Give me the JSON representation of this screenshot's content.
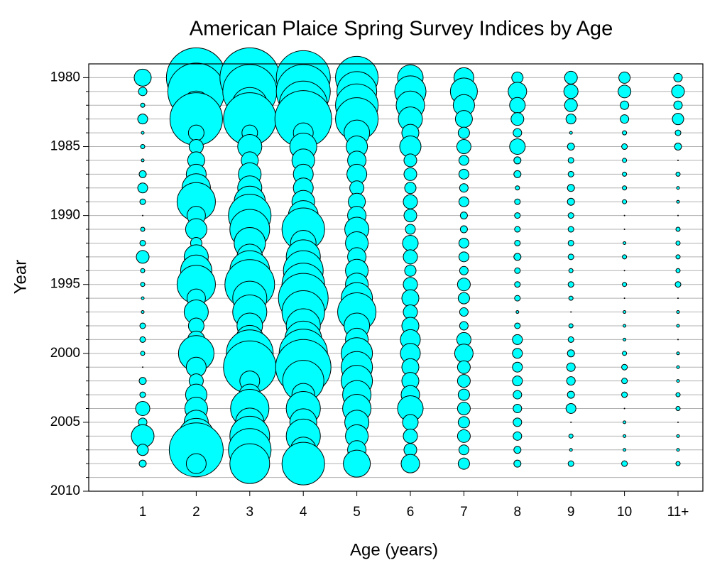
{
  "chart_data": {
    "type": "bubble",
    "title": "American Plaice Spring Survey Indices by Age",
    "x_label": "Age (years)",
    "y_label": "Year",
    "categories": [
      "1",
      "2",
      "3",
      "4",
      "5",
      "6",
      "7",
      "8",
      "9",
      "10",
      "11+"
    ],
    "y": [
      1980,
      1981,
      1982,
      1983,
      1984,
      1985,
      1986,
      1987,
      1988,
      1989,
      1990,
      1991,
      1992,
      1993,
      1994,
      1995,
      1996,
      1997,
      1998,
      1999,
      2000,
      2001,
      2002,
      2003,
      2004,
      2005,
      2006,
      2007,
      2008
    ],
    "sizes": [
      [
        12,
        6,
        3,
        7,
        2,
        3,
        2,
        5,
        7,
        4,
        0.5,
        3,
        4,
        9,
        3,
        3,
        2,
        2,
        4,
        4,
        3,
        0.5,
        5,
        4,
        10,
        6,
        16,
        8,
        5
      ],
      [
        42,
        40,
        20,
        37,
        11,
        10,
        12,
        14,
        20,
        27,
        13,
        15,
        8,
        17,
        22,
        27,
        13,
        17,
        11,
        12,
        25,
        14,
        10,
        15,
        16,
        17,
        25,
        38,
        14
      ],
      [
        42,
        38,
        25,
        37,
        11,
        17,
        12,
        16,
        17,
        22,
        30,
        28,
        22,
        18,
        28,
        35,
        24,
        24,
        18,
        20,
        33,
        37,
        14,
        15,
        27,
        20,
        28,
        30,
        28
      ],
      [
        38,
        38,
        34,
        40,
        14,
        19,
        16,
        14,
        14,
        16,
        21,
        30,
        18,
        24,
        28,
        30,
        35,
        30,
        24,
        26,
        34,
        39,
        29,
        16,
        24,
        19,
        24,
        18,
        30
      ],
      [
        30,
        28,
        30,
        30,
        18,
        15,
        13,
        14,
        10,
        12,
        13,
        17,
        16,
        13,
        16,
        16,
        22,
        27,
        18,
        16,
        22,
        22,
        22,
        20,
        20,
        17,
        16,
        13,
        19
      ],
      [
        18,
        22,
        20,
        17,
        12,
        15,
        9,
        9,
        8,
        10,
        9,
        7,
        11,
        10,
        8,
        10,
        12,
        10,
        12,
        14,
        14,
        12,
        12,
        13,
        18,
        11,
        10,
        9,
        13
      ],
      [
        14,
        19,
        15,
        12,
        8,
        10,
        7,
        7,
        6,
        7,
        5,
        5,
        7,
        7,
        6,
        9,
        8,
        6,
        6,
        10,
        13,
        9,
        9,
        8,
        9,
        8,
        9,
        7,
        8
      ],
      [
        8,
        13,
        11,
        9,
        6,
        11,
        5,
        5,
        3,
        4,
        4,
        4,
        4,
        5,
        4,
        4,
        4,
        2,
        4,
        7,
        7,
        7,
        7,
        6,
        6,
        6,
        6,
        5,
        5
      ],
      [
        9,
        10,
        9,
        7,
        2,
        5,
        4,
        4,
        5,
        5,
        4,
        4,
        4,
        4,
        3,
        4,
        3,
        0.5,
        3,
        4,
        5,
        6,
        6,
        5,
        7,
        0.5,
        3,
        2,
        4
      ],
      [
        8,
        9,
        6,
        6,
        3,
        4,
        3,
        3,
        3,
        3,
        0.5,
        0.5,
        2,
        3,
        0.5,
        3,
        0.5,
        2,
        2,
        2,
        3,
        4,
        4,
        4,
        0.5,
        2,
        2,
        2,
        4
      ],
      [
        6,
        9,
        6,
        8,
        4,
        5,
        0.5,
        3,
        2,
        2,
        0.5,
        3,
        3,
        3,
        3,
        4,
        0.5,
        2,
        2,
        0.5,
        2,
        2,
        2,
        3,
        3,
        0.5,
        2,
        2,
        3
      ]
    ],
    "color": "#00ffff",
    "edge_color": "#000000",
    "ylim": [
      2010,
      1979
    ],
    "yticks": [
      1980,
      1985,
      1990,
      1995,
      2000,
      2005,
      2010
    ],
    "minor_yticks": [
      1981,
      1982,
      1983,
      1984,
      1986,
      1987,
      1988,
      1989,
      1991,
      1992,
      1993,
      1994,
      1996,
      1997,
      1998,
      1999,
      2001,
      2002,
      2003,
      2004,
      2006,
      2007,
      2008,
      2009
    ],
    "grid": true
  }
}
